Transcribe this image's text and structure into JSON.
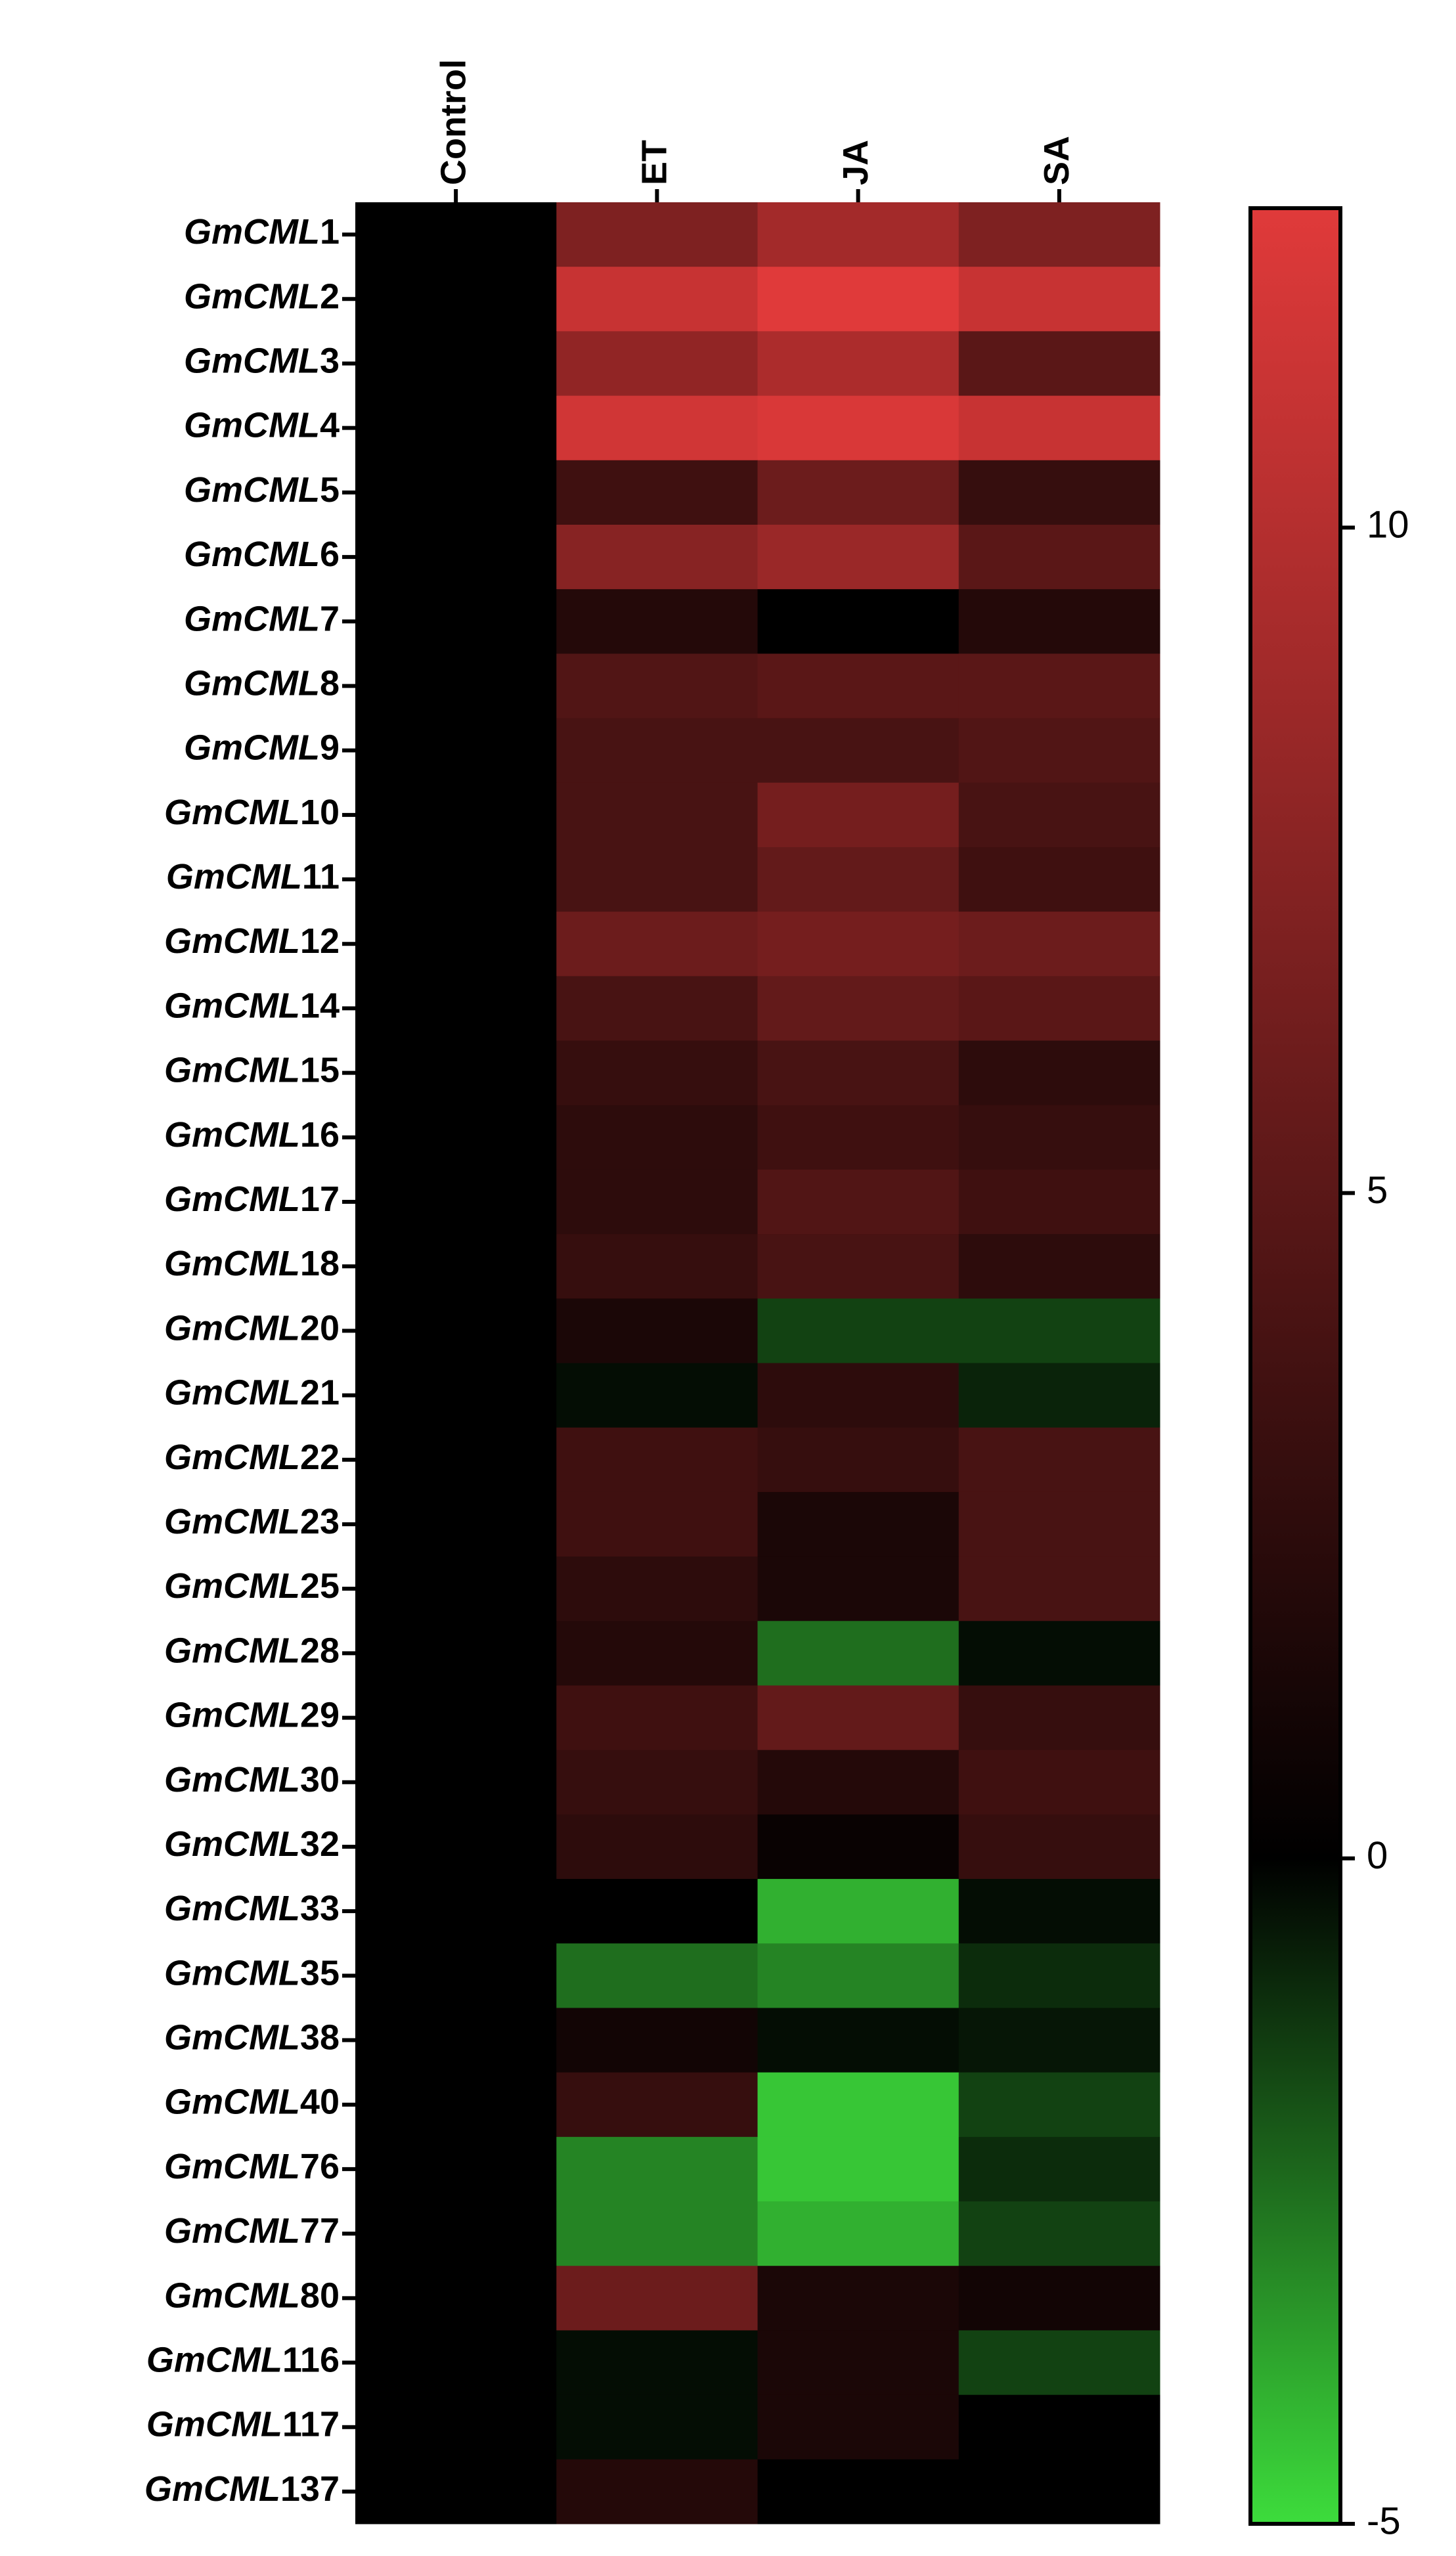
{
  "chart_data": {
    "type": "heatmap",
    "x": [
      "Control",
      "ET",
      "JA",
      "SA"
    ],
    "y": [
      "GmCML1",
      "GmCML2",
      "GmCML3",
      "GmCML4",
      "GmCML5",
      "GmCML6",
      "GmCML7",
      "GmCML8",
      "GmCML9",
      "GmCML10",
      "GmCML11",
      "GmCML12",
      "GmCML14",
      "GmCML15",
      "GmCML16",
      "GmCML17",
      "GmCML18",
      "GmCML20",
      "GmCML21",
      "GmCML22",
      "GmCML23",
      "GmCML25",
      "GmCML28",
      "GmCML29",
      "GmCML30",
      "GmCML32",
      "GmCML33",
      "GmCML35",
      "GmCML38",
      "GmCML40",
      "GmCML76",
      "GmCML77",
      "GmCML80",
      "GmCML116",
      "GmCML117",
      "GmCML137"
    ],
    "values": [
      [
        0,
        7,
        9,
        7
      ],
      [
        0,
        11,
        12.4,
        11
      ],
      [
        0,
        8,
        9.5,
        5
      ],
      [
        0,
        11.5,
        12,
        11
      ],
      [
        0,
        3.5,
        6,
        3
      ],
      [
        0,
        7.5,
        8.5,
        5
      ],
      [
        0,
        2,
        0,
        2
      ],
      [
        0,
        4.5,
        5,
        5
      ],
      [
        0,
        4,
        4,
        4.5
      ],
      [
        0,
        4,
        6.5,
        4
      ],
      [
        0,
        4,
        5.5,
        3.5
      ],
      [
        0,
        6,
        6.5,
        6
      ],
      [
        0,
        4,
        5.5,
        5
      ],
      [
        0,
        3,
        4,
        2.5
      ],
      [
        0,
        2.5,
        3.5,
        3
      ],
      [
        0,
        2.5,
        4.5,
        3.5
      ],
      [
        0,
        3,
        4,
        2.5
      ],
      [
        0,
        1.5,
        -1.5,
        -1.5
      ],
      [
        0,
        -0.3,
        2.5,
        -0.8
      ],
      [
        0,
        3.5,
        3,
        4
      ],
      [
        0,
        3.5,
        1.5,
        4
      ],
      [
        0,
        2.5,
        1.5,
        4
      ],
      [
        0,
        2,
        -2.5,
        -0.3
      ],
      [
        0,
        3.5,
        5.5,
        3
      ],
      [
        0,
        3,
        2,
        3.5
      ],
      [
        0,
        2.5,
        0.5,
        3
      ],
      [
        0,
        0,
        -4,
        -0.3
      ],
      [
        0,
        -2.5,
        -3,
        -1
      ],
      [
        0,
        1,
        -0.3,
        -0.5
      ],
      [
        0,
        3,
        -4.5,
        -1.5
      ],
      [
        0,
        -3,
        -4.5,
        -1
      ],
      [
        0,
        -3,
        -4,
        -1.5
      ],
      [
        0,
        6,
        1.5,
        1
      ],
      [
        0,
        -0.3,
        1.5,
        -1.5
      ],
      [
        0,
        -0.3,
        1.5,
        0
      ],
      [
        0,
        2,
        0,
        0
      ]
    ],
    "zlim": [
      -5,
      12.4
    ],
    "zticks": [
      -5,
      0,
      5,
      10
    ],
    "colors": {
      "low": "#3ddc3c",
      "mid": "#000000",
      "high": "#e03a3a"
    }
  }
}
